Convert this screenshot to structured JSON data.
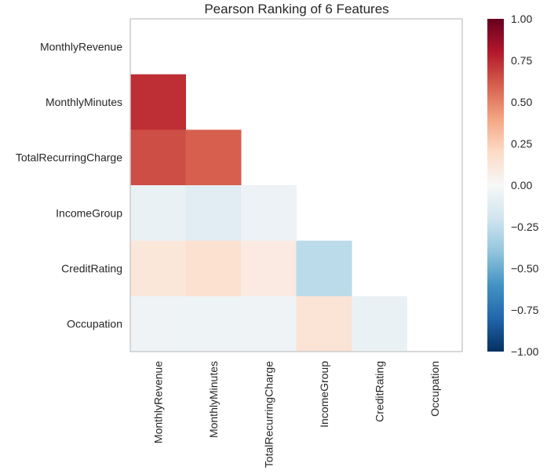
{
  "chart_data": {
    "type": "heatmap",
    "title": "Pearson Ranking of 6 Features",
    "features": [
      "MonthlyRevenue",
      "MonthlyMinutes",
      "TotalRecurringCharge",
      "IncomeGroup",
      "CreditRating",
      "Occupation"
    ],
    "matrix": [
      [
        null,
        null,
        null,
        null,
        null,
        null
      ],
      [
        0.74,
        null,
        null,
        null,
        null,
        null
      ],
      [
        0.65,
        0.6,
        null,
        null,
        null,
        null
      ],
      [
        -0.07,
        -0.11,
        -0.06,
        null,
        null,
        null
      ],
      [
        0.12,
        0.16,
        0.09,
        -0.27,
        null,
        null
      ],
      [
        -0.04,
        -0.05,
        -0.04,
        0.14,
        -0.07,
        null
      ]
    ],
    "colorbar": {
      "min": -1.0,
      "max": 1.0,
      "ticks": [
        "1.00",
        "0.75",
        "0.50",
        "0.25",
        "0.00",
        "−0.25",
        "−0.50",
        "−0.75",
        "−1.00"
      ],
      "tick_values": [
        1.0,
        0.75,
        0.5,
        0.25,
        0.0,
        -0.25,
        -0.5,
        -0.75,
        -1.0
      ],
      "colormap": "RdBu_r"
    },
    "colors": {
      "frame": "#cccccc",
      "text": "#262626",
      "stops": [
        "#053061",
        "#2166ac",
        "#4393c3",
        "#92c5de",
        "#d1e5f0",
        "#f7f7f7",
        "#fddbc7",
        "#f4a582",
        "#d6604d",
        "#b2182b",
        "#67001f"
      ]
    }
  }
}
